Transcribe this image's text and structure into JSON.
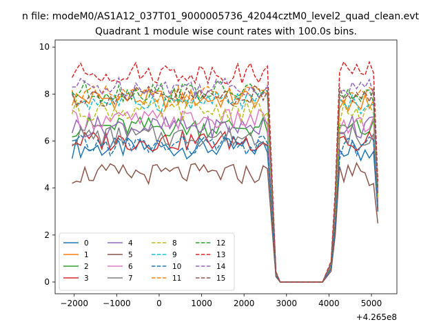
{
  "chart_data": {
    "type": "line",
    "suptitle": "n file: modeM0/AS1A12_037T01_9000005736_42044cztM0_level2_quad_clean.evt",
    "title": "Quadrant 1 module wise count rates with 100.0s bins.",
    "xlabel": "",
    "ylabel": "",
    "x_offset_label": "+4.265e8",
    "xlim": [
      -2450,
      5600
    ],
    "ylim": [
      -0.5,
      10.3
    ],
    "xticks": [
      -2000,
      -1000,
      0,
      1000,
      2000,
      3000,
      4000,
      5000
    ],
    "yticks": [
      0,
      2,
      4,
      6,
      8,
      10
    ],
    "grid": false,
    "legend": {
      "placement": "lower-left",
      "columns": 4
    },
    "x_segments": [
      {
        "start": -2050,
        "step": 100,
        "count": 46
      },
      {
        "start": 2550,
        "step": 100,
        "count": 3
      },
      {
        "start": 2850,
        "step": 200,
        "count": 6
      },
      {
        "start": 4050,
        "step": 100,
        "count": 12
      }
    ],
    "series": [
      {
        "name": "0",
        "color": "#1f77b4",
        "dash": "solid",
        "active1": 5.7,
        "gap": 0.0,
        "active2": 5.6,
        "end": 3.0
      },
      {
        "name": "1",
        "color": "#ff7f0e",
        "dash": "solid",
        "active1": 7.8,
        "gap": 0.0,
        "active2": 7.7,
        "end": 3.2
      },
      {
        "name": "2",
        "color": "#2ca02c",
        "dash": "solid",
        "active1": 6.6,
        "gap": 0.0,
        "active2": 6.5,
        "end": 3.4
      },
      {
        "name": "3",
        "color": "#d62728",
        "dash": "solid",
        "active1": 6.0,
        "gap": 0.0,
        "active2": 5.9,
        "end": 3.1
      },
      {
        "name": "4",
        "color": "#9467bd",
        "dash": "solid",
        "active1": 6.6,
        "gap": 0.0,
        "active2": 6.6,
        "end": 3.3
      },
      {
        "name": "5",
        "color": "#8c564b",
        "dash": "solid",
        "active1": 4.6,
        "gap": 0.0,
        "active2": 4.6,
        "end": 2.5
      },
      {
        "name": "6",
        "color": "#e377c2",
        "dash": "solid",
        "active1": 6.9,
        "gap": 0.0,
        "active2": 6.8,
        "end": 3.5
      },
      {
        "name": "7",
        "color": "#7f7f7f",
        "dash": "solid",
        "active1": 6.2,
        "gap": 0.0,
        "active2": 6.2,
        "end": 3.2
      },
      {
        "name": "8",
        "color": "#bcbd22",
        "dash": "dashed",
        "active1": 7.3,
        "gap": 0.0,
        "active2": 7.2,
        "end": 3.6
      },
      {
        "name": "9",
        "color": "#17becf",
        "dash": "dashed",
        "active1": 7.7,
        "gap": 0.0,
        "active2": 7.6,
        "end": 3.8
      },
      {
        "name": "10",
        "color": "#1f77b4",
        "dash": "dashed",
        "active1": 5.8,
        "gap": 0.0,
        "active2": 5.7,
        "end": 3.0
      },
      {
        "name": "11",
        "color": "#ff7f0e",
        "dash": "dashed",
        "active1": 7.9,
        "gap": 0.0,
        "active2": 7.8,
        "end": 4.0
      },
      {
        "name": "12",
        "color": "#2ca02c",
        "dash": "dashed",
        "active1": 8.1,
        "gap": 0.0,
        "active2": 8.0,
        "end": 4.1
      },
      {
        "name": "13",
        "color": "#d62728",
        "dash": "dashed",
        "active1": 8.9,
        "gap": 0.0,
        "active2": 8.9,
        "end": 4.3
      },
      {
        "name": "14",
        "color": "#9467bd",
        "dash": "dashed",
        "active1": 8.3,
        "gap": 0.0,
        "active2": 8.2,
        "end": 3.9
      },
      {
        "name": "15",
        "color": "#8c564b",
        "dash": "dashed",
        "active1": 7.9,
        "gap": 0.0,
        "active2": 7.8,
        "end": 3.7
      }
    ]
  }
}
